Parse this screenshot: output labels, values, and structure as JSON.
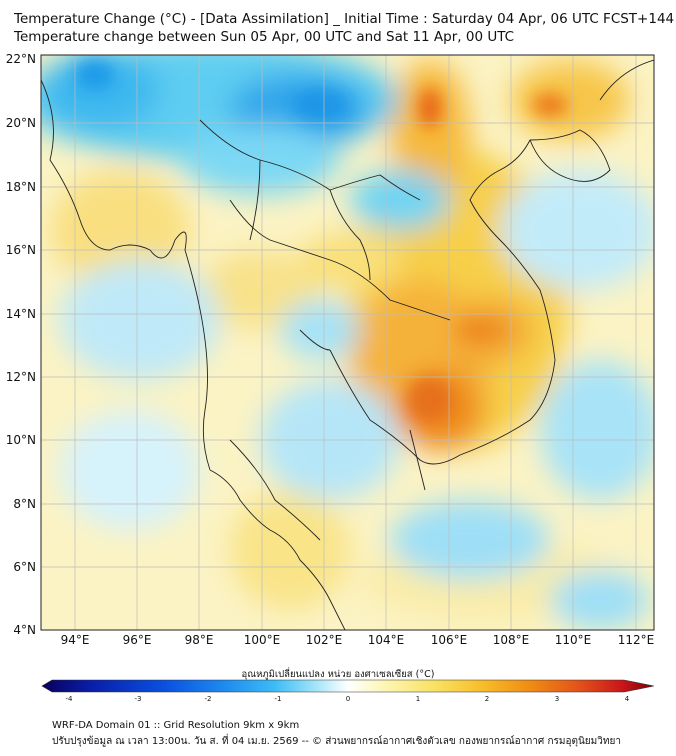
{
  "title_line1": "Temperature Change (°C) - [Data Assimilation] _ Initial Time : Saturday 04 Apr, 06 UTC FCST+144",
  "title_line2": "Temperature change between Sun 05 Apr, 00 UTC and Sat 11 Apr, 00 UTC",
  "latitude_labels": [
    "22°N",
    "20°N",
    "18°N",
    "16°N",
    "14°N",
    "12°N",
    "10°N",
    "8°N",
    "6°N",
    "4°N"
  ],
  "longitude_labels": [
    "94°E",
    "96°E",
    "98°E",
    "100°E",
    "102°E",
    "104°E",
    "106°E",
    "108°E",
    "110°E",
    "112°E"
  ],
  "colorbar": {
    "label": "อุณหภูมิเปลี่ยนแปลง หน่วย องศาเซลเซียส (°C)",
    "ticks": [
      "-4",
      "-3",
      "-2",
      "-1",
      "0",
      "1",
      "2",
      "3",
      "4"
    ],
    "min": -4,
    "max": 4,
    "colors": [
      "#08005a",
      "#0a1ea8",
      "#0a50e0",
      "#1e8cf0",
      "#3cbcf5",
      "#78dcf8",
      "#c6f0fb",
      "#ffffff",
      "#fdf6b4",
      "#f9e264",
      "#f7bd2a",
      "#f08a14",
      "#e2501a",
      "#c8141a",
      "#7a0000"
    ]
  },
  "footer_line1": "WRF-DA Domain 01 :: Grid Resolution 9km x 9km",
  "footer_line2": "ปรับปรุงข้อมูล ณ เวลา 13:00น. วัน ส. ที่ 04 เม.ย. 2569 -- © ส่วนพยากรณ์อากาศเชิงตัวเลข กองพยากรณ์อากาศ กรมอุตุนิยมวิทยา",
  "colors": {
    "warm": "#f7c23a",
    "warm_strong": "#ea7a16",
    "cool": "#5ccdf0",
    "cool_strong": "#1ea6ea",
    "pale_yellow": "#fbf0a8",
    "pale_blue": "#c8eef9",
    "coastline": "#222222",
    "grid": "#bbbbbb"
  }
}
